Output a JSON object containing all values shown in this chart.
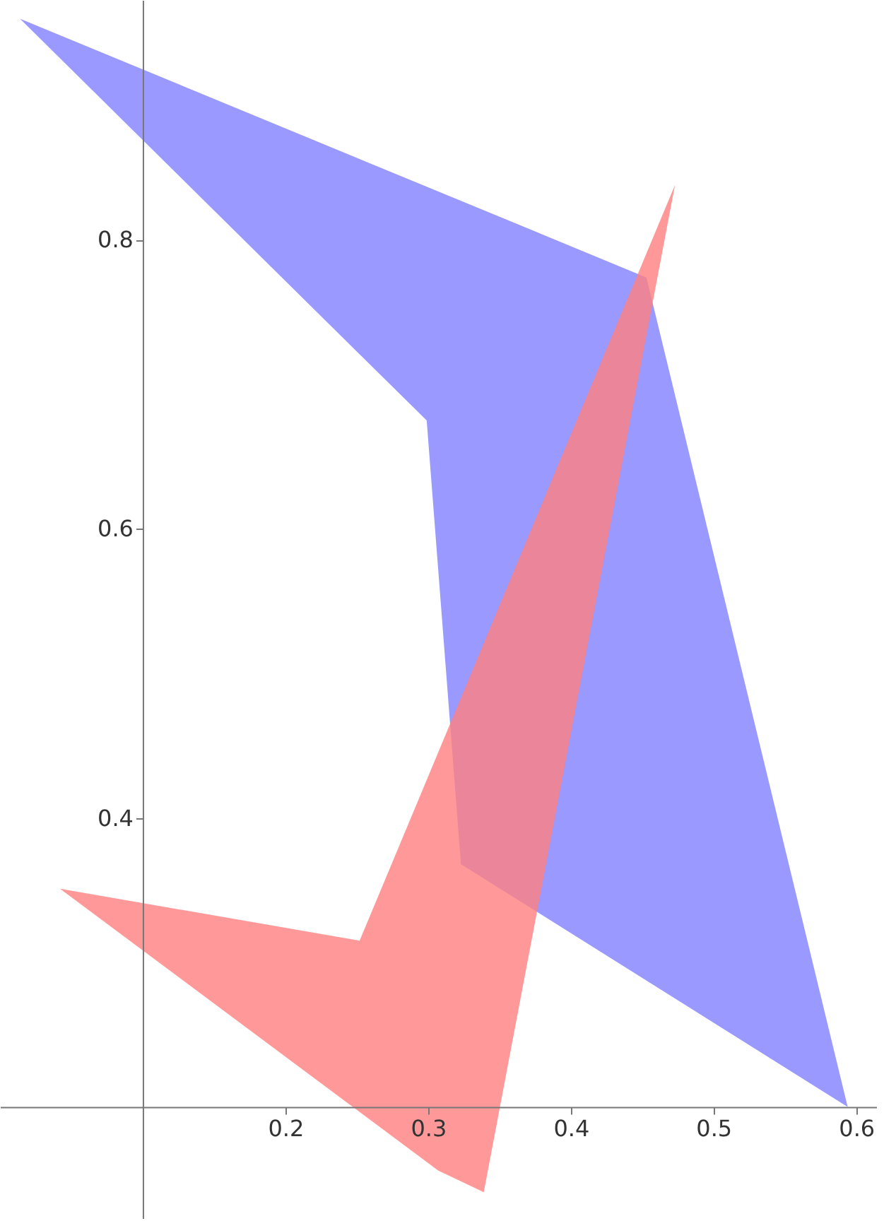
{
  "chart_data": {
    "type": "area",
    "series": [
      {
        "color": "#8080ff",
        "x": [
          0.014,
          0.453,
          0.594,
          0.323,
          0.299
        ],
        "values": [
          0.953,
          0.774,
          0.2,
          0.368,
          0.675
        ]
      },
      {
        "color": "#ff8080",
        "x": [
          0.042,
          0.252,
          0.473,
          0.339,
          0.307
        ],
        "values": [
          0.351,
          0.315,
          0.838,
          0.141,
          0.156
        ]
      }
    ],
    "xlim": [
      0,
      0.614
    ],
    "ylim": [
      0.123,
      0.966
    ],
    "xticks": [
      0.2,
      0.3,
      0.4,
      0.5,
      0.6
    ],
    "yticks": [
      0.4,
      0.6,
      0.8
    ]
  }
}
